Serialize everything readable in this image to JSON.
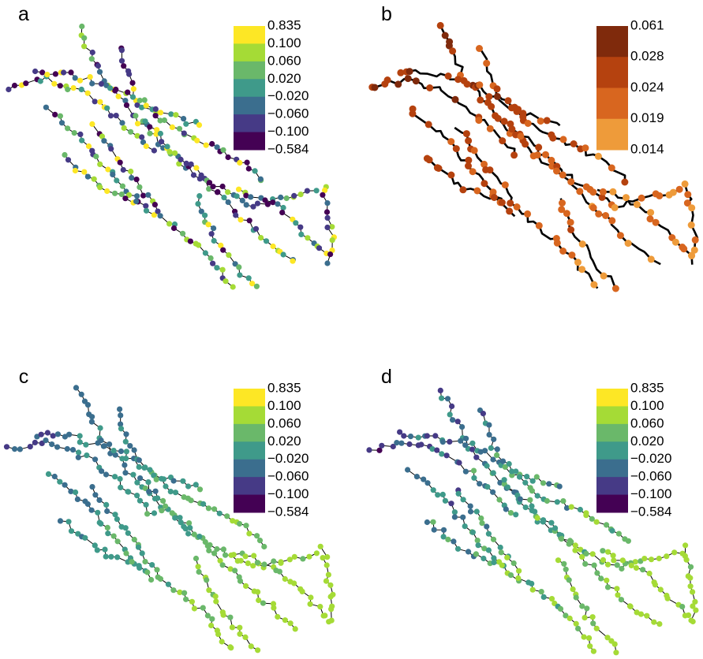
{
  "panels": [
    {
      "label": "a",
      "legend": {
        "labels": [
          "0.835",
          "0.100",
          "0.060",
          "0.020",
          "−0.020",
          "−0.060",
          "−0.100",
          "−0.584"
        ],
        "colors": [
          "#fde725",
          "#a5db36",
          "#6ab86a",
          "#3f9a8a",
          "#3b6e8e",
          "#463a86",
          "#440154"
        ]
      }
    },
    {
      "label": "b",
      "legend": {
        "labels": [
          "0.061",
          "0.028",
          "0.024",
          "0.019",
          "0.014"
        ],
        "colors": [
          "#7f2a0c",
          "#b5420f",
          "#d8661f",
          "#ee9b3a"
        ]
      }
    },
    {
      "label": "c",
      "legend": {
        "labels": [
          "0.835",
          "0.100",
          "0.060",
          "0.020",
          "−0.020",
          "−0.060",
          "−0.100",
          "−0.584"
        ],
        "colors": [
          "#fde725",
          "#a5db36",
          "#6ab86a",
          "#3f9a8a",
          "#3b6e8e",
          "#463a86",
          "#440154"
        ]
      }
    },
    {
      "label": "d",
      "legend": {
        "labels": [
          "0.835",
          "0.100",
          "0.060",
          "0.020",
          "−0.020",
          "−0.060",
          "−0.100",
          "−0.584"
        ],
        "colors": [
          "#fde725",
          "#a5db36",
          "#6ab86a",
          "#3f9a8a",
          "#3b6e8e",
          "#463a86",
          "#440154"
        ]
      }
    }
  ]
}
